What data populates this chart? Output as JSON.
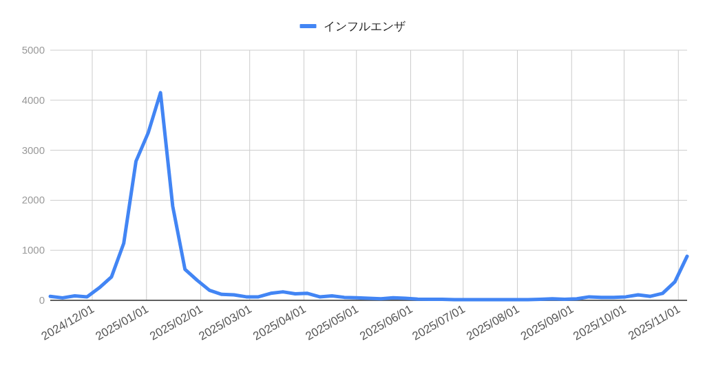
{
  "chart_data": {
    "type": "line",
    "legend": "top",
    "grid": true,
    "line_style": "solid",
    "marker": "none",
    "x": [
      "2024-11-07",
      "2024-11-14",
      "2024-11-21",
      "2024-11-28",
      "2024-12-05",
      "2024-12-12",
      "2024-12-19",
      "2024-12-26",
      "2025-01-02",
      "2025-01-09",
      "2025-01-16",
      "2025-01-23",
      "2025-01-30",
      "2025-02-06",
      "2025-02-13",
      "2025-02-20",
      "2025-02-27",
      "2025-03-06",
      "2025-03-13",
      "2025-03-20",
      "2025-03-27",
      "2025-04-03",
      "2025-04-10",
      "2025-04-17",
      "2025-04-24",
      "2025-05-01",
      "2025-05-08",
      "2025-05-15",
      "2025-05-22",
      "2025-05-29",
      "2025-06-05",
      "2025-06-12",
      "2025-06-19",
      "2025-06-26",
      "2025-07-03",
      "2025-07-10",
      "2025-07-17",
      "2025-07-24",
      "2025-07-31",
      "2025-08-07",
      "2025-08-14",
      "2025-08-21",
      "2025-08-28",
      "2025-09-04",
      "2025-09-11",
      "2025-09-18",
      "2025-09-25",
      "2025-10-02",
      "2025-10-09",
      "2025-10-16",
      "2025-10-23",
      "2025-10-30",
      "2025-11-06"
    ],
    "series": [
      {
        "name": "インフルエンザ",
        "color": "#4285f4",
        "values": [
          80,
          50,
          90,
          70,
          250,
          470,
          1140,
          2780,
          3350,
          4150,
          1880,
          620,
          400,
          200,
          120,
          110,
          70,
          70,
          140,
          170,
          130,
          140,
          70,
          90,
          60,
          50,
          40,
          30,
          50,
          40,
          25,
          20,
          20,
          15,
          15,
          15,
          15,
          15,
          15,
          15,
          20,
          30,
          20,
          30,
          70,
          60,
          60,
          70,
          110,
          80,
          140,
          370,
          880
        ]
      }
    ],
    "xlim": [
      "2024-11-07",
      "2025-11-06"
    ],
    "xticks": [
      {
        "value": "2024-12-01",
        "label": "2024/12/01"
      },
      {
        "value": "2025-01-01",
        "label": "2025/01/01"
      },
      {
        "value": "2025-02-01",
        "label": "2025/02/01"
      },
      {
        "value": "2025-03-01",
        "label": "2025/03/01"
      },
      {
        "value": "2025-04-01",
        "label": "2025/04/01"
      },
      {
        "value": "2025-05-01",
        "label": "2025/05/01"
      },
      {
        "value": "2025-06-01",
        "label": "2025/06/01"
      },
      {
        "value": "2025-07-01",
        "label": "2025/07/01"
      },
      {
        "value": "2025-08-01",
        "label": "2025/08/01"
      },
      {
        "value": "2025-09-01",
        "label": "2025/09/01"
      },
      {
        "value": "2025-10-01",
        "label": "2025/10/01"
      },
      {
        "value": "2025-11-01",
        "label": "2025/11/01"
      }
    ],
    "ylim": [
      0,
      5000
    ],
    "yticks": [
      0,
      1000,
      2000,
      3000,
      4000,
      5000
    ]
  }
}
